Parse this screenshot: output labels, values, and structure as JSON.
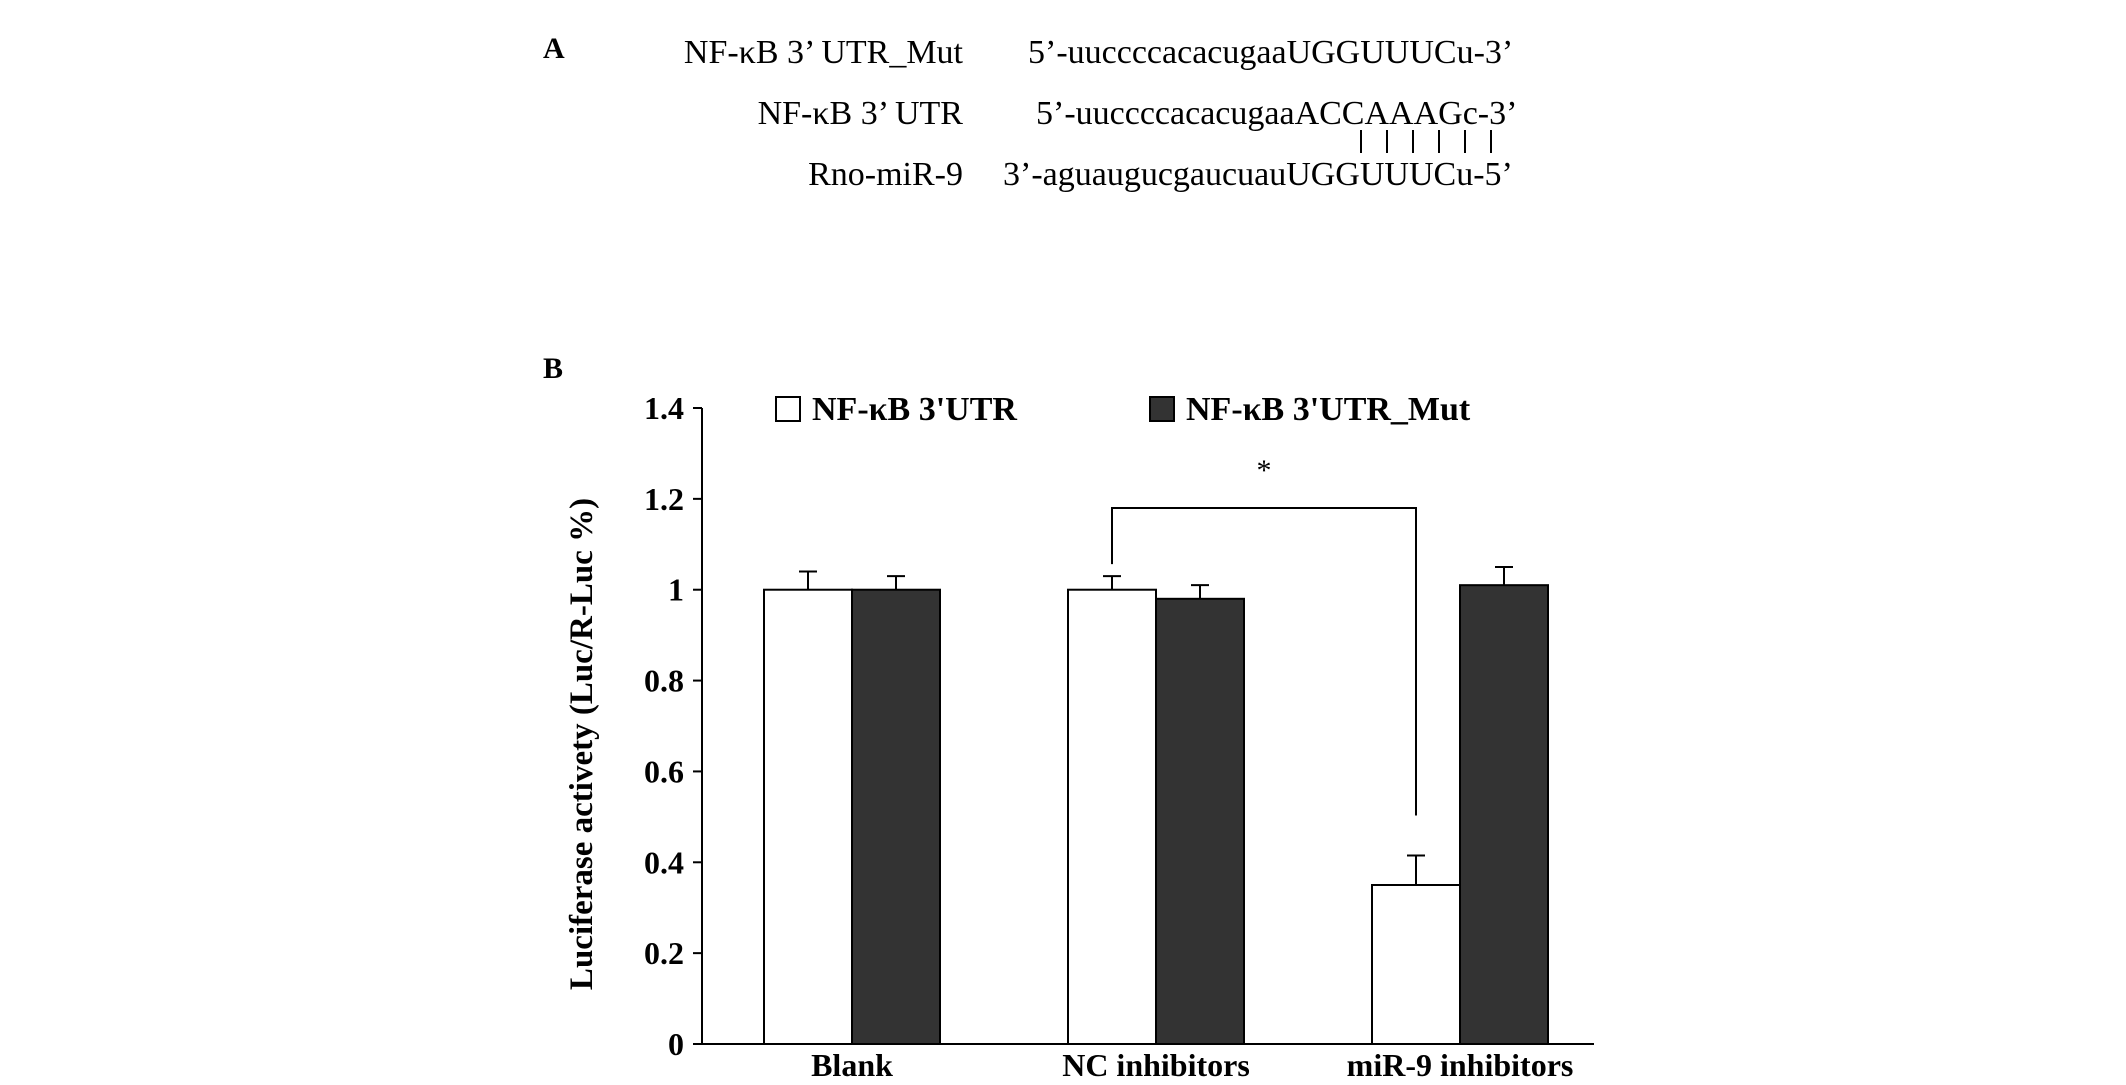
{
  "panel_a": {
    "label": "A",
    "rows": [
      {
        "name": "NF-κB 3’ UTR_Mut",
        "prefix": "5’-uuccccacacugaa",
        "core": "UGGUUUC",
        "suffix": "u-3’"
      },
      {
        "name": "NF-κB 3’ UTR",
        "prefix": "5’-uuccccacacugaa",
        "core": "ACCAAAG",
        "suffix": "c-3’"
      },
      {
        "name": "Rno-miR-9",
        "prefix": "3’-aguaugucgaucuau",
        "core": "UGGUUUC",
        "suffix": "u-5’"
      }
    ],
    "pairing_marks": 6
  },
  "panel_b": {
    "label": "B",
    "significance": "*"
  },
  "chart_data": {
    "type": "bar",
    "title": "",
    "xlabel": "",
    "ylabel": "Luciferase activety (Luc/R-Luc %)",
    "categories": [
      "Blank",
      "NC inhibitors",
      "miR-9 inhibitors"
    ],
    "series": [
      {
        "name": "NF-κB 3'UTR",
        "values": [
          1.0,
          1.0,
          0.35
        ],
        "errors": [
          0.04,
          0.03,
          0.065
        ],
        "color": "#ffffff"
      },
      {
        "name": "NF-κB 3'UTR_Mut",
        "values": [
          1.0,
          0.98,
          1.01
        ],
        "errors": [
          0.03,
          0.03,
          0.04
        ],
        "color": "#333333"
      }
    ],
    "ylim": [
      0,
      1.4
    ],
    "yticks": [
      "0",
      "0.2",
      "0.4",
      "0.6",
      "0.8",
      "1",
      "1.2",
      "1.4"
    ],
    "ytick_values": [
      0,
      0.2,
      0.4,
      0.6,
      0.8,
      1,
      1.2,
      1.4
    ],
    "grid": false,
    "legend_position": "top"
  }
}
